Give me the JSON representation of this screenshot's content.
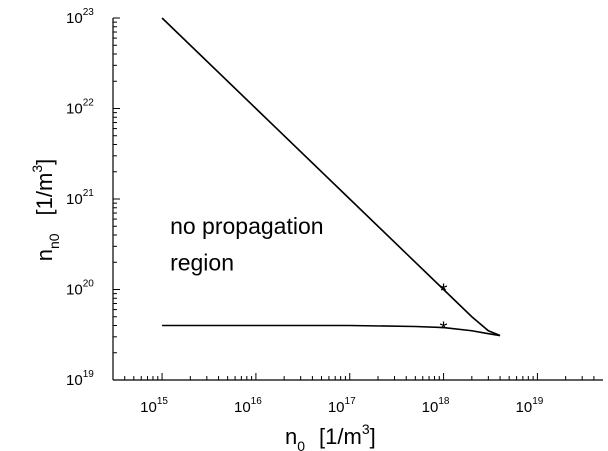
{
  "chart_data": {
    "type": "line",
    "xscale": "log",
    "yscale": "log",
    "xlim": [
      300000000000000.0,
      5e+19
    ],
    "ylim": [
      1e+19,
      1e+23
    ],
    "xticks": [
      {
        "base": "10",
        "exp": "15",
        "value": 1000000000000000.0
      },
      {
        "base": "10",
        "exp": "16",
        "value": 1e+16
      },
      {
        "base": "10",
        "exp": "17",
        "value": 1e+17
      },
      {
        "base": "10",
        "exp": "18",
        "value": 1e+18
      },
      {
        "base": "10",
        "exp": "19",
        "value": 1e+19
      }
    ],
    "yticks": [
      {
        "base": "10",
        "exp": "19",
        "value": 1e+19
      },
      {
        "base": "10",
        "exp": "20",
        "value": 1e+20
      },
      {
        "base": "10",
        "exp": "21",
        "value": 1e+21
      },
      {
        "base": "10",
        "exp": "22",
        "value": 1e+22
      },
      {
        "base": "10",
        "exp": "23",
        "value": 1e+23
      }
    ],
    "xlabel": {
      "main": "n",
      "sub": "0",
      "unit": "[1/m",
      "unit_sup": "3",
      "unit_close": "]"
    },
    "ylabel": {
      "main": "n",
      "sub": "n0",
      "unit": "[1/m",
      "unit_sup": "3",
      "unit_close": "]"
    },
    "annotations": [
      {
        "text": "no propagation",
        "x": 1000000000000000.0,
        "y": 5e+20
      },
      {
        "text": "region",
        "x": 1000000000000000.0,
        "y": 2e+20
      }
    ],
    "series": [
      {
        "x": [
          1000000000000000.0,
          1e+16,
          1e+17,
          1e+18,
          2e+18,
          3e+18,
          4e+18
        ],
        "y": [
          1e+23,
          1e+22,
          1e+21,
          1e+20,
          5e+19,
          3.5e+19,
          3.1e+19
        ]
      },
      {
        "x": [
          1000000000000000.0,
          1e+16,
          1e+17,
          5e+17,
          1e+18,
          2e+18,
          3e+18,
          4e+18
        ],
        "y": [
          4e+19,
          4e+19,
          4e+19,
          3.9e+19,
          3.8e+19,
          3.5e+19,
          3.25e+19,
          3.1e+19
        ]
      }
    ],
    "markers": [
      {
        "symbol": "*",
        "x": 1e+18,
        "y": 1e+20
      },
      {
        "symbol": "*",
        "x": 1e+18,
        "y": 3.8e+19
      }
    ],
    "grid": false
  }
}
